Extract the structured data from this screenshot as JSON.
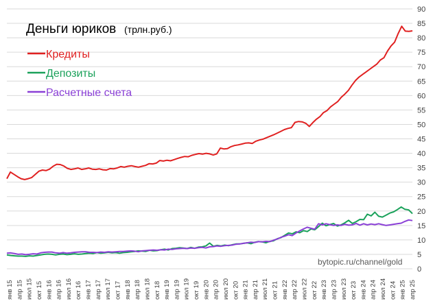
{
  "chart_data": {
    "type": "line",
    "title": "Деньги юриков",
    "subtitle": "(трлн.руб.)",
    "watermark": "bytopic.ru/channel/gold",
    "ylim": [
      0,
      90
    ],
    "yticks": [
      0,
      5,
      10,
      15,
      20,
      25,
      30,
      35,
      40,
      45,
      50,
      55,
      60,
      65,
      70,
      75,
      80,
      85,
      90
    ],
    "y_axis_side": "right",
    "grid": true,
    "legend_position": "top-left",
    "x_labels": [
      "янв 15",
      "апр 15",
      "июл 15",
      "окт 15",
      "янв 16",
      "апр 16",
      "июл 16",
      "окт 16",
      "янв 17",
      "апр 17",
      "июл 17",
      "окт 17",
      "янв 18",
      "апр 18",
      "июл 18",
      "окт 18",
      "янв 19",
      "апр 19",
      "июл 19",
      "окт 19",
      "янв 20",
      "апр 20",
      "июл 20",
      "окт 20",
      "янв 21",
      "апр 21",
      "июл 21",
      "окт 21",
      "янв 22",
      "апр 22",
      "июл 22",
      "окт 22",
      "янв 23",
      "апр 23",
      "июл 23",
      "окт 23",
      "янв 24",
      "апр 24",
      "июл 24",
      "окт 24",
      "янв 25",
      "апр 25"
    ],
    "series": [
      {
        "name": "Кредиты",
        "color": "#e02020",
        "values": [
          31.2,
          33.5,
          32.7,
          31.9,
          31.2,
          30.9,
          31.2,
          31.6,
          32.7,
          33.8,
          34.2,
          34.0,
          34.5,
          35.5,
          36.2,
          36.1,
          35.6,
          34.8,
          34.4,
          34.6,
          34.9,
          34.4,
          34.6,
          34.9,
          34.5,
          34.4,
          34.6,
          34.3,
          34.2,
          34.7,
          34.6,
          34.9,
          35.4,
          35.2,
          35.5,
          35.7,
          35.4,
          35.2,
          35.5,
          35.8,
          36.4,
          36.3,
          36.6,
          37.5,
          37.3,
          37.6,
          37.4,
          37.8,
          38.2,
          38.6,
          38.9,
          38.8,
          39.3,
          39.6,
          39.9,
          39.7,
          40.0,
          39.8,
          39.4,
          39.8,
          41.8,
          41.5,
          41.6,
          42.3,
          42.7,
          42.9,
          43.2,
          43.5,
          43.6,
          43.4,
          44.2,
          44.6,
          44.9,
          45.4,
          45.9,
          46.4,
          47.0,
          47.6,
          48.2,
          48.6,
          48.9,
          50.7,
          51.0,
          50.9,
          50.4,
          49.3,
          50.6,
          51.8,
          52.7,
          54.1,
          54.8,
          56.1,
          57.0,
          57.9,
          59.4,
          60.5,
          61.8,
          63.6,
          65.2,
          66.4,
          67.3,
          68.2,
          69.1,
          70.0,
          70.9,
          72.3,
          73.1,
          75.4,
          77.2,
          78.5,
          81.5,
          84.0,
          82.3,
          82.2,
          82.4
        ],
        "end_label": ""
      },
      {
        "name": "Депозиты",
        "color": "#1aa15a",
        "values": [
          4.8,
          4.6,
          4.5,
          4.4,
          4.4,
          4.3,
          4.5,
          4.4,
          4.6,
          4.8,
          5.0,
          5.1,
          5.0,
          4.8,
          5.0,
          5.1,
          4.9,
          5.0,
          5.2,
          5.0,
          5.1,
          5.3,
          5.4,
          5.3,
          5.6,
          5.4,
          5.5,
          5.7,
          5.5,
          5.6,
          5.4,
          5.6,
          5.7,
          5.9,
          6.0,
          6.2,
          6.1,
          6.0,
          6.4,
          6.2,
          6.3,
          6.6,
          6.8,
          6.5,
          7.0,
          7.1,
          7.3,
          7.2,
          7.0,
          7.4,
          7.1,
          7.5,
          7.6,
          7.9,
          8.9,
          7.8,
          8.1,
          7.9,
          8.2,
          8.0,
          8.3,
          8.6,
          8.6,
          8.8,
          9.0,
          8.7,
          9.2,
          9.4,
          9.3,
          9.0,
          9.5,
          9.7,
          10.4,
          10.8,
          11.6,
          12.4,
          12.1,
          12.8,
          12.5,
          13.2,
          12.9,
          13.8,
          13.5,
          14.6,
          15.8,
          14.9,
          15.3,
          15.7,
          14.8,
          15.2,
          15.9,
          16.8,
          15.7,
          16.3,
          17.1,
          17.0,
          18.9,
          18.3,
          19.6,
          18.2,
          17.9,
          18.6,
          19.3,
          19.7,
          20.5,
          21.4,
          20.6,
          20.4,
          19.1
        ],
        "end_label": ""
      },
      {
        "name": "Расчетные счета",
        "color": "#8a3fd6",
        "values": [
          5.4,
          5.5,
          5.3,
          5.0,
          5.1,
          4.9,
          5.0,
          5.2,
          5.1,
          5.5,
          5.7,
          5.8,
          5.8,
          5.5,
          5.4,
          5.6,
          5.4,
          5.5,
          5.7,
          5.8,
          5.9,
          5.9,
          5.7,
          5.7,
          5.6,
          5.8,
          5.7,
          5.9,
          5.8,
          5.9,
          6.0,
          6.0,
          6.1,
          6.2,
          6.1,
          5.9,
          6.2,
          6.3,
          6.4,
          6.5,
          6.4,
          6.6,
          6.5,
          6.8,
          6.7,
          6.9,
          7.0,
          7.1,
          7.0,
          7.2,
          7.1,
          7.3,
          7.4,
          7.2,
          7.6,
          7.7,
          7.9,
          7.8,
          8.0,
          8.1,
          8.2,
          8.5,
          8.6,
          8.8,
          9.0,
          9.2,
          9.1,
          9.4,
          9.3,
          9.5,
          9.4,
          9.9,
          10.3,
          10.9,
          11.3,
          11.8,
          11.5,
          12.4,
          13.1,
          13.8,
          14.4,
          14.0,
          13.7,
          15.6,
          15.2,
          15.6,
          15.3,
          15.0,
          15.2,
          15.0,
          15.4,
          15.1,
          15.2,
          15.7,
          15.1,
          15.6,
          15.2,
          15.5,
          15.3,
          15.6,
          15.3,
          15.0,
          15.2,
          15.4,
          15.6,
          15.8,
          16.4,
          16.9,
          16.7
        ],
        "end_label": ""
      }
    ]
  }
}
